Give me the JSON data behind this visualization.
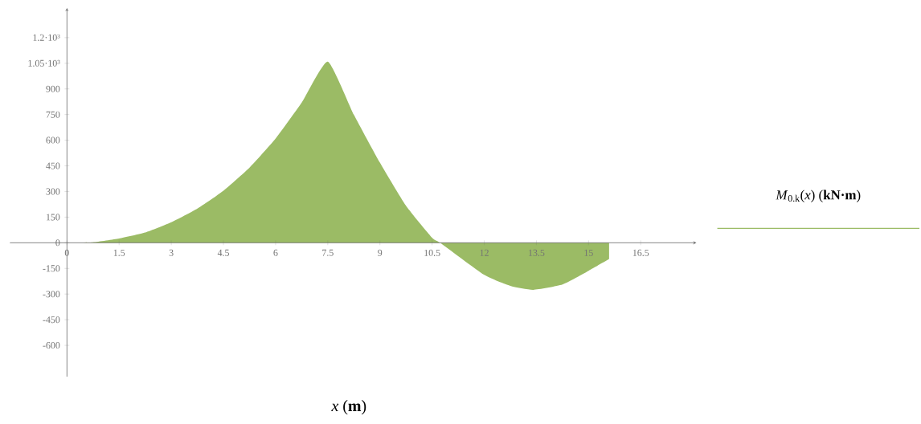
{
  "chart_data": {
    "type": "area",
    "xlabel": "*x* (**m**)",
    "x": [
      0,
      0.75,
      1.5,
      2.25,
      3,
      3.75,
      4.5,
      5.25,
      6,
      6.75,
      7.5,
      8.25,
      9,
      9.75,
      10.5,
      10.73,
      12,
      12.75,
      13.41,
      14.25,
      15,
      15.59
    ],
    "series": [
      {
        "name": "*M*$_{0.k}$(*x*) (**kN·m**)",
        "color": "#9bbb65",
        "values": [
          0,
          3,
          25,
          60,
          120,
          200,
          305,
          440,
          610,
          820,
          1060,
          750,
          469,
          217,
          30,
          0,
          -188,
          -252,
          -275,
          -244,
          -164,
          -95
        ]
      }
    ],
    "xlim": [
      -1.64,
      18.1
    ],
    "ylim": [
      -783,
      1373
    ],
    "xticks": [
      0,
      1.5,
      3,
      4.5,
      6,
      7.5,
      9,
      10.5,
      12,
      13.5,
      15,
      16.5
    ],
    "yticks": [
      -600,
      -450,
      -300,
      -150,
      0,
      150,
      300,
      450,
      600,
      750,
      900,
      {
        "value": 1050,
        "label": "1.05·10³"
      },
      {
        "value": 1200,
        "label": "1.2·10³"
      }
    ],
    "legend": "right",
    "grid": false,
    "marker": "none"
  }
}
